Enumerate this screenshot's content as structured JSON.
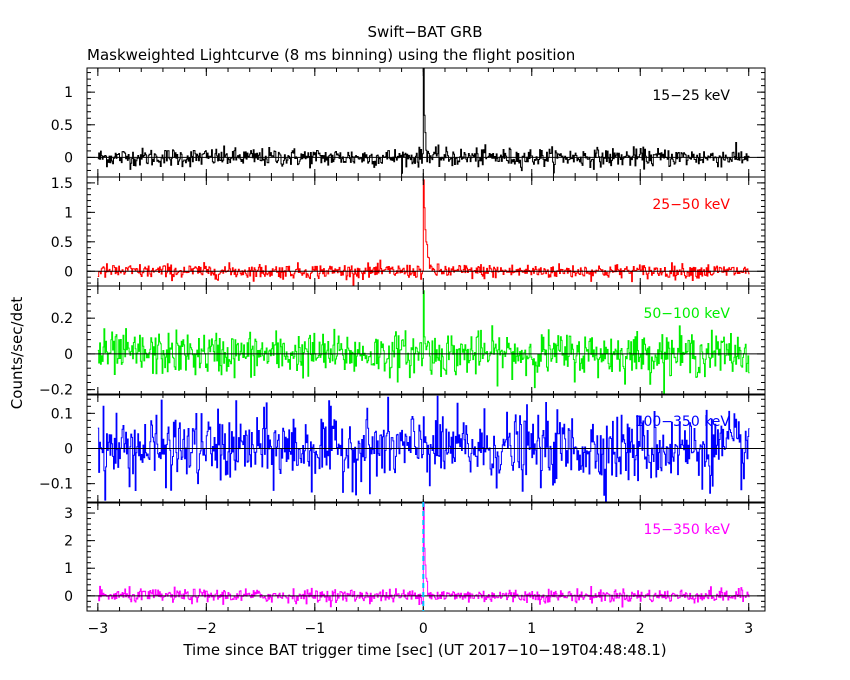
{
  "header": {
    "title": "Swift−BAT GRB",
    "subtitle": "Maskweighted Lightcurve (8 ms binning) using the flight position"
  },
  "chart_data": {
    "type": "line",
    "xlabel": "Time since BAT trigger time [sec] (UT 2017−10−19T04:48:48.1)",
    "ylabel": "Counts/sec/det",
    "xlim": [
      -3.1,
      3.15
    ],
    "x_ticks": [
      "−3",
      "−2",
      "−1",
      "0",
      "1",
      "2",
      "3"
    ],
    "x_tick_values": [
      -3,
      -2,
      -1,
      0,
      1,
      2,
      3
    ],
    "bin_seconds": 0.008,
    "trigger_marker_x": 0,
    "panels": [
      {
        "name": "15−25 keV",
        "color": "#000000",
        "ylim": [
          -0.3,
          1.37
        ],
        "y_ticks": [
          0,
          0.5,
          1
        ],
        "y_tick_labels": [
          "0",
          "0.5",
          "1"
        ],
        "noise_sigma": 0.07,
        "peak": 1.35,
        "peak_x": 0.0,
        "decay_seconds": 0.012
      },
      {
        "name": "25−50 keV",
        "color": "#ff0000",
        "ylim": [
          -0.25,
          1.6
        ],
        "y_ticks": [
          0,
          0.5,
          1,
          1.5
        ],
        "y_tick_labels": [
          "0",
          "0.5",
          "1",
          "1.5"
        ],
        "noise_sigma": 0.06,
        "peak": 1.55,
        "peak_x": 0.0,
        "decay_seconds": 0.02
      },
      {
        "name": "50−100 keV",
        "color": "#00ee00",
        "ylim": [
          -0.23,
          0.38
        ],
        "y_ticks": [
          -0.2,
          0,
          0.2
        ],
        "y_tick_labels": [
          "−0.2",
          "0",
          "0.2"
        ],
        "noise_sigma": 0.06,
        "peak": 0.35,
        "peak_x": 0.0,
        "decay_seconds": 0.01
      },
      {
        "name": "100−350 keV",
        "color": "#0000ff",
        "ylim": [
          -0.155,
          0.155
        ],
        "y_ticks": [
          -0.1,
          0,
          0.1
        ],
        "y_tick_labels": [
          "−0.1",
          "0",
          "0.1"
        ],
        "noise_sigma": 0.05,
        "peak": 0.12,
        "peak_x": 0.0,
        "decay_seconds": 0.01
      },
      {
        "name": "15−350 keV",
        "color": "#ff00ff",
        "ylim": [
          -0.55,
          3.4
        ],
        "y_ticks": [
          0,
          1,
          2,
          3
        ],
        "y_tick_labels": [
          "0",
          "1",
          "2",
          "3"
        ],
        "noise_sigma": 0.12,
        "peak": 3.3,
        "peak_x": 0.0,
        "decay_seconds": 0.015
      }
    ],
    "grid": false,
    "zero_line": true
  }
}
